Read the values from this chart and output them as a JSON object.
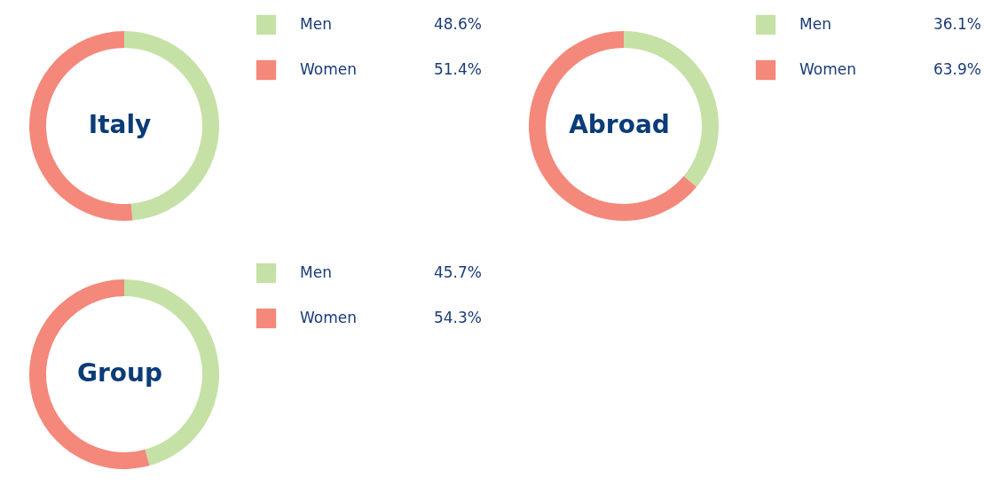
{
  "chart_data": [
    {
      "type": "donut",
      "title": "Italy",
      "categories": [
        "Men",
        "Women"
      ],
      "values": [
        48.6,
        51.4
      ],
      "colors": [
        "#c5e1a5",
        "#f4887a"
      ],
      "value_labels": [
        "48.6%",
        "51.4%"
      ],
      "legend": "right"
    },
    {
      "type": "donut",
      "title": "Abroad",
      "categories": [
        "Men",
        "Women"
      ],
      "values": [
        36.1,
        63.9
      ],
      "colors": [
        "#c5e1a5",
        "#f4887a"
      ],
      "value_labels": [
        "36.1%",
        "63.9%"
      ],
      "legend": "right"
    },
    {
      "type": "donut",
      "title": "Group",
      "categories": [
        "Men",
        "Women"
      ],
      "values": [
        45.7,
        54.3
      ],
      "colors": [
        "#c5e1a5",
        "#f4887a"
      ],
      "value_labels": [
        "45.7%",
        "54.3%"
      ],
      "legend": "right"
    }
  ]
}
